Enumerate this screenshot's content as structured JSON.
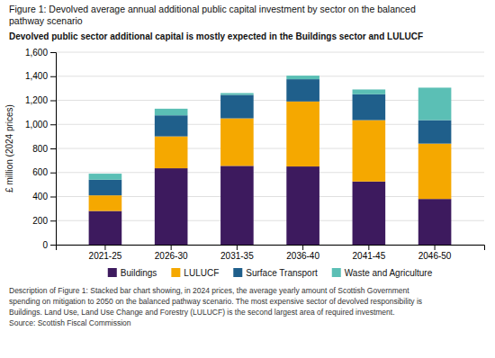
{
  "chart_data": {
    "type": "bar",
    "title": "Figure 1: Devolved average annual additional public capital investment by sector on the balanced\npathway scenario",
    "subtitle": "Devolved public sector additional capital is mostly expected in the Buildings sector and LULUCF",
    "y_label": "£ million (2024 prices)",
    "categories": [
      "2021-25",
      "2026-30",
      "2031-35",
      "2036-40",
      "2041-45",
      "2046-50"
    ],
    "series": [
      {
        "name": "Buildings",
        "color": "#3d1a5e",
        "values": [
          280,
          635,
          655,
          650,
          525,
          380
        ]
      },
      {
        "name": "LULUCF",
        "color": "#f5a800",
        "values": [
          130,
          265,
          395,
          540,
          510,
          460
        ]
      },
      {
        "name": "Surface Transport",
        "color": "#1f5f8b",
        "values": [
          130,
          175,
          195,
          185,
          215,
          195
        ]
      },
      {
        "name": "Waste and Agriculture",
        "color": "#5bbfb5",
        "values": [
          50,
          55,
          15,
          30,
          40,
          270
        ]
      }
    ],
    "stacked": true,
    "ylim": [
      0,
      1600
    ],
    "yticks": [
      0,
      200,
      400,
      600,
      800,
      {
        "value": 1000,
        "label": "1,000"
      },
      {
        "value": 1200,
        "label": "1,200"
      },
      {
        "value": 1400,
        "label": "1,400"
      },
      {
        "value": 1600,
        "label": "1,600"
      }
    ],
    "grid": true,
    "legend": "bottom",
    "annotations": [
      "Description of Figure 1: Stacked bar chart showing, in 2024 prices, the average yearly amount of Scottish Government",
      "spending on mitigation to 2050 on the balanced pathway scenario. The most expensive sector of devolved responsibility is",
      "Buildings. Land Use, Land Use Change and Forestry (LULUCF) is the second largest area of required investment.",
      "Source: Scottish Fiscal Commission"
    ]
  }
}
